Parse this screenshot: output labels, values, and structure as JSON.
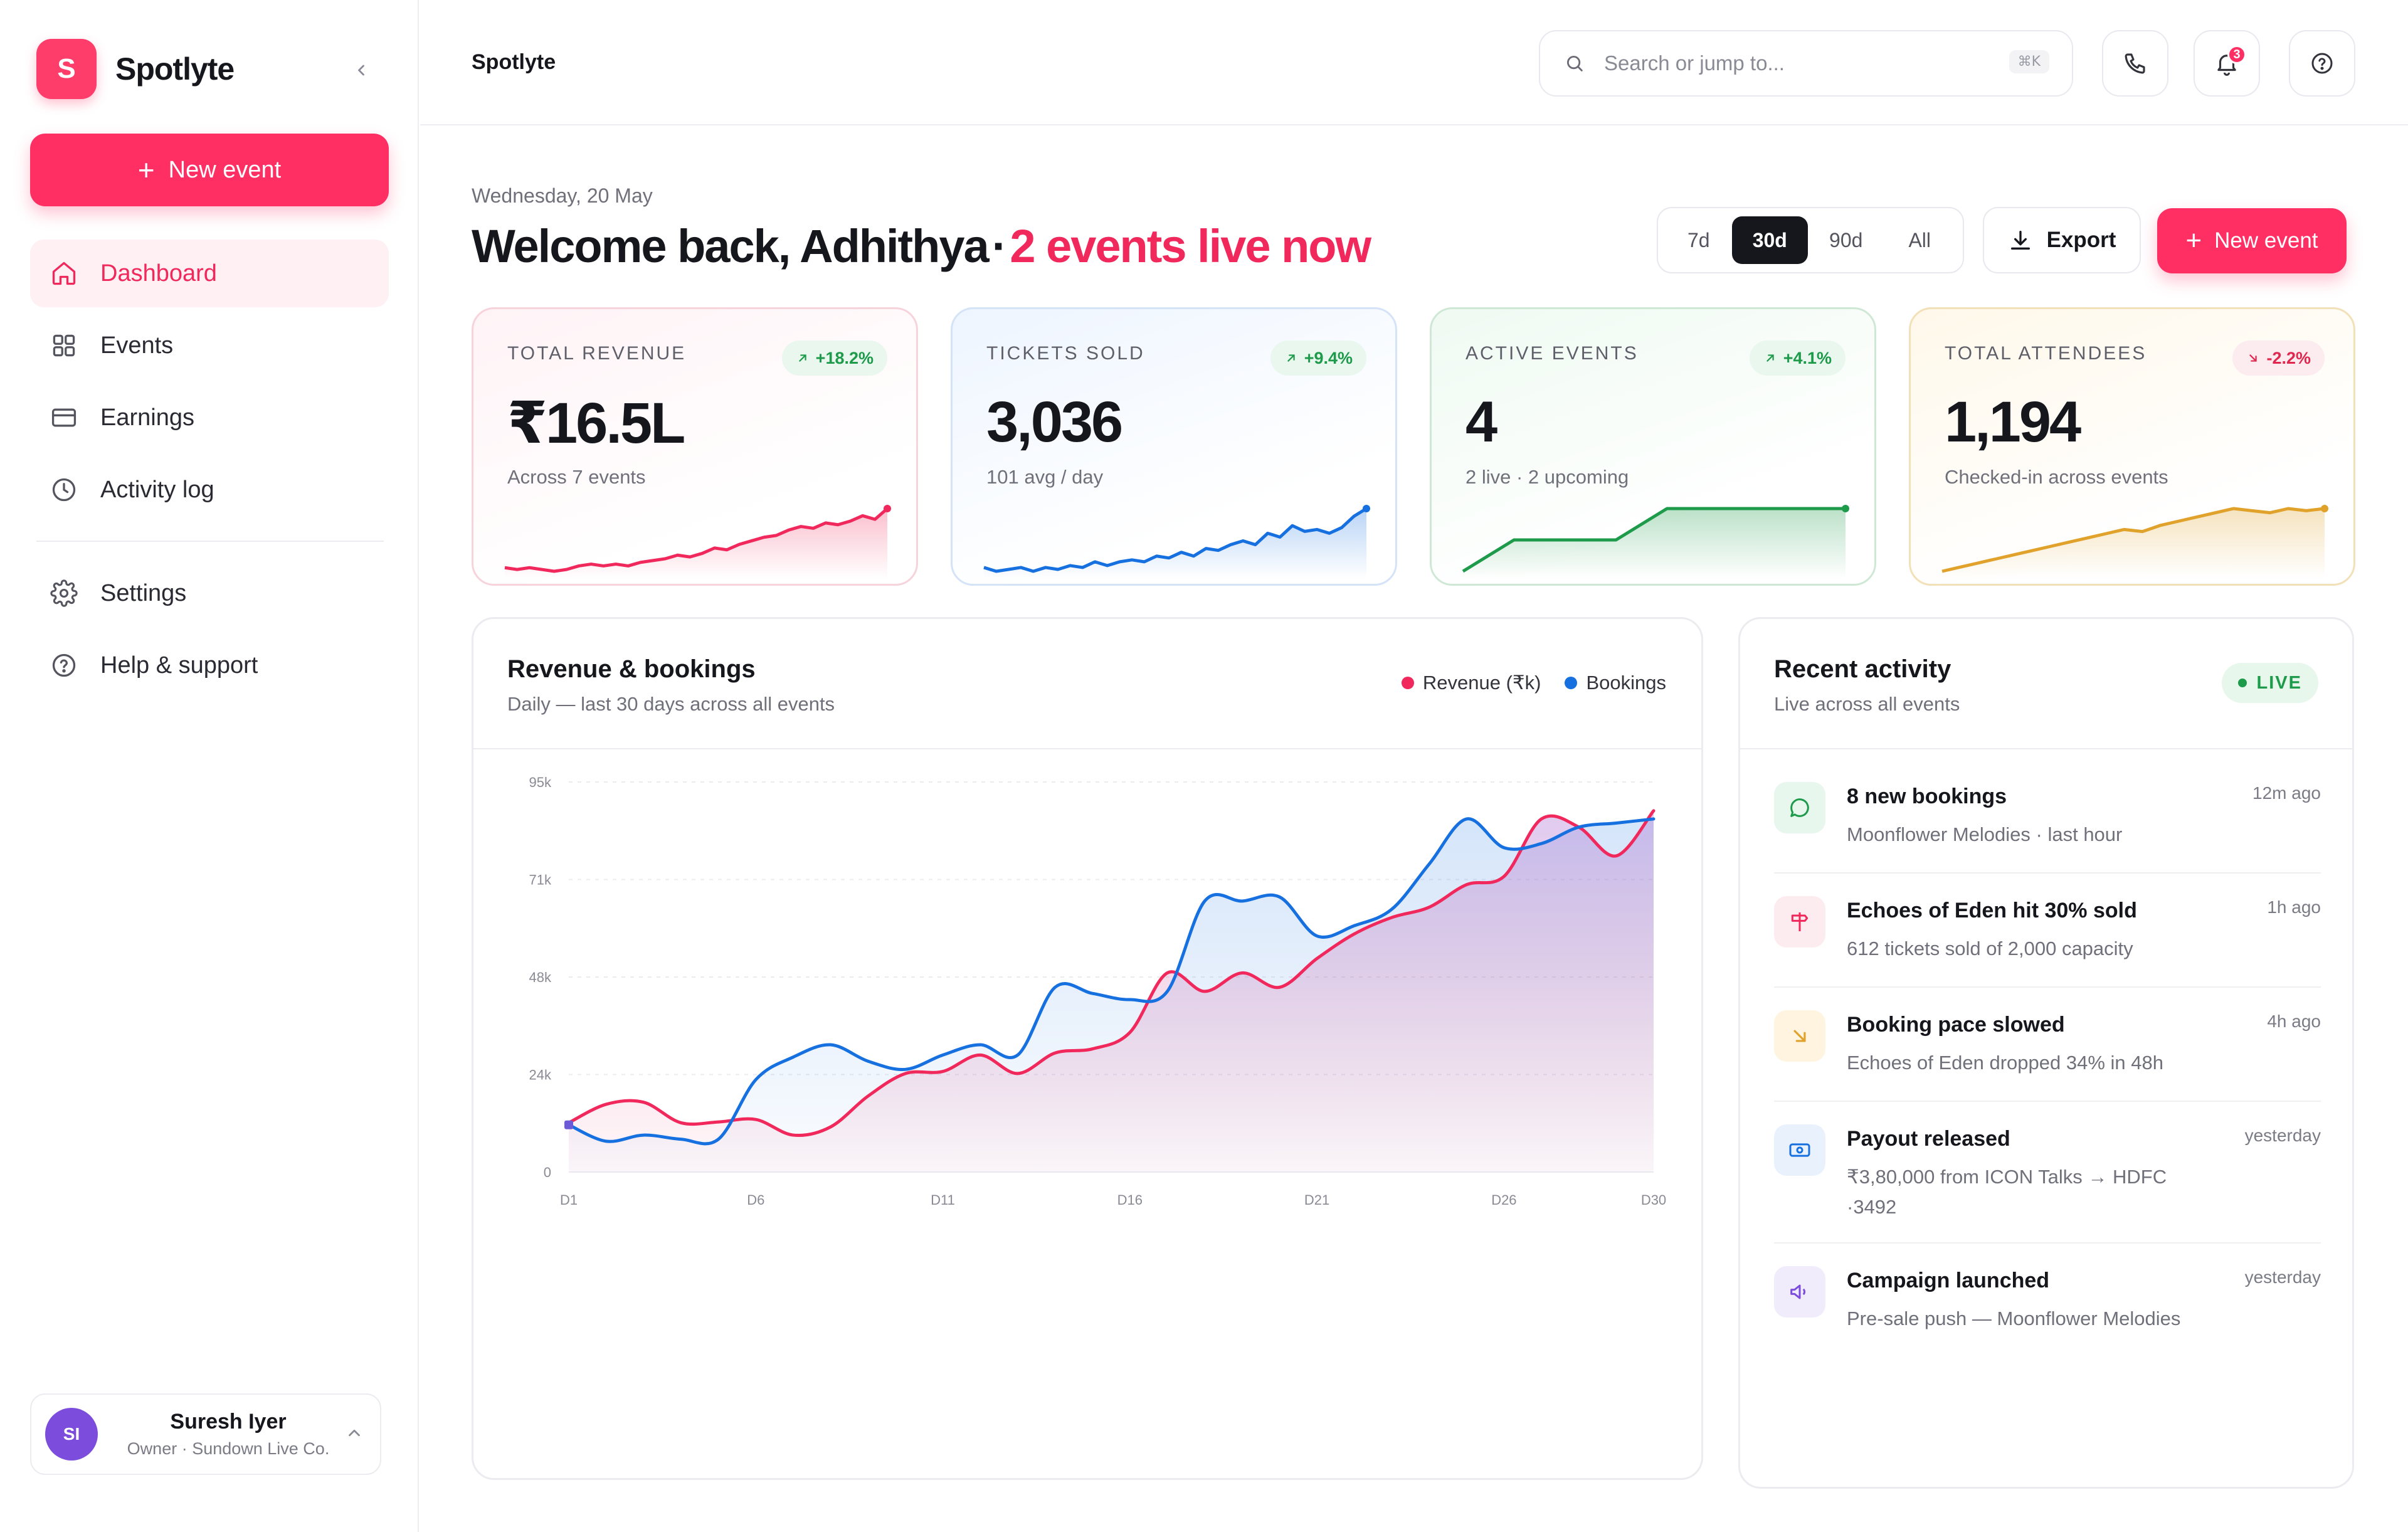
{
  "app": {
    "brand_initial": "S",
    "brand_name": "Spotlyte",
    "new_event_label": "New event"
  },
  "sidebar": {
    "items": [
      {
        "label": "Dashboard",
        "icon": "home-icon",
        "active": true
      },
      {
        "label": "Events",
        "icon": "grid-icon",
        "active": false
      },
      {
        "label": "Earnings",
        "icon": "card-icon",
        "active": false
      },
      {
        "label": "Activity log",
        "icon": "clock-icon",
        "active": false
      },
      {
        "label": "Settings",
        "icon": "gear-icon",
        "active": false
      },
      {
        "label": "Help & support",
        "icon": "help-icon",
        "active": false
      }
    ],
    "user": {
      "initials": "SI",
      "name": "Suresh Iyer",
      "role": "Owner · Sundown Live Co."
    }
  },
  "topbar": {
    "title": "Spotlyte",
    "search_placeholder": "Search or jump to...",
    "search_shortcut": "⌘K",
    "notification_count": "3"
  },
  "header": {
    "date": "Wednesday, 20 May",
    "welcome": "Welcome back, Adhithya",
    "separator": "·",
    "live_text": "2 events live now",
    "ranges": [
      "7d",
      "30d",
      "90d",
      "All"
    ],
    "active_range": "30d",
    "export_label": "Export",
    "new_event_label": "New event"
  },
  "kpis": [
    {
      "label": "TOTAL REVENUE",
      "delta": "+18.2%",
      "direction": "up",
      "value": "₹16.5L",
      "sub": "Across 7 events",
      "color": "#f0285b",
      "spark": [
        5,
        4,
        5,
        4,
        3,
        4,
        6,
        7,
        6,
        7,
        6,
        8,
        9,
        10,
        12,
        11,
        13,
        16,
        15,
        18,
        20,
        22,
        23,
        26,
        28,
        27,
        30,
        29,
        31,
        34,
        32,
        38
      ]
    },
    {
      "label": "TICKETS SOLD",
      "delta": "+9.4%",
      "direction": "up",
      "value": "3,036",
      "sub": "101 avg / day",
      "color": "#1670e0",
      "spark": [
        6,
        4,
        5,
        6,
        4,
        6,
        5,
        7,
        6,
        9,
        7,
        9,
        10,
        9,
        12,
        11,
        14,
        12,
        16,
        15,
        18,
        20,
        18,
        24,
        22,
        28,
        25,
        26,
        24,
        27,
        33,
        37
      ]
    },
    {
      "label": "ACTIVE EVENTS",
      "delta": "+4.1%",
      "direction": "up",
      "value": "4",
      "sub": "2 live · 2 upcoming",
      "color": "#1e9b4a",
      "spark": [
        0,
        10,
        20,
        20,
        20,
        20,
        20,
        30,
        40,
        40,
        40,
        40,
        40,
        40,
        40,
        40
      ]
    },
    {
      "label": "TOTAL ATTENDEES",
      "delta": "-2.2%",
      "direction": "down",
      "value": "1,194",
      "sub": "Checked-in across events",
      "color": "#e0a22a",
      "spark": [
        4,
        6,
        8,
        10,
        12,
        14,
        16,
        18,
        20,
        22,
        24,
        23,
        26,
        28,
        30,
        32,
        34,
        33,
        32,
        34,
        33,
        34
      ]
    }
  ],
  "revenue_panel": {
    "title": "Revenue & bookings",
    "subtitle": "Daily — last 30 days across all events",
    "legend": [
      {
        "name": "Revenue (₹k)",
        "color": "#f0285b"
      },
      {
        "name": "Bookings",
        "color": "#1670e0"
      }
    ]
  },
  "chart_data": {
    "type": "line",
    "title": "Revenue & bookings",
    "xlabel": "",
    "ylabel": "",
    "ylim": [
      0,
      95000
    ],
    "y_ticks": [
      "0",
      "24k",
      "48k",
      "71k",
      "95k"
    ],
    "x_ticks": [
      "D1",
      "D6",
      "D11",
      "D16",
      "D21",
      "D26",
      "D30"
    ],
    "x": [
      "D1",
      "D2",
      "D3",
      "D4",
      "D5",
      "D6",
      "D7",
      "D8",
      "D9",
      "D10",
      "D11",
      "D12",
      "D13",
      "D14",
      "D15",
      "D16",
      "D17",
      "D18",
      "D19",
      "D20",
      "D21",
      "D22",
      "D23",
      "D24",
      "D25",
      "D26",
      "D27",
      "D28",
      "D29",
      "D30"
    ],
    "grid": true,
    "series": [
      {
        "name": "Revenue (₹k)",
        "color": "#f0285b",
        "values": [
          12000,
          16500,
          17000,
          12000,
          12200,
          12800,
          9000,
          11000,
          18500,
          24000,
          24500,
          28500,
          24000,
          29000,
          30000,
          34000,
          48500,
          44000,
          48500,
          45000,
          52000,
          58000,
          62000,
          64500,
          70000,
          72000,
          86000,
          84000,
          77000,
          88000
        ]
      },
      {
        "name": "Bookings",
        "color": "#1670e0",
        "values": [
          11500,
          7500,
          9000,
          8000,
          8000,
          22500,
          28000,
          31000,
          27000,
          25000,
          28500,
          31000,
          28500,
          45000,
          43500,
          42000,
          44000,
          66000,
          66000,
          67000,
          57500,
          60000,
          64000,
          75000,
          86000,
          79000,
          80000,
          84000,
          85000,
          86000
        ]
      }
    ]
  },
  "activity": {
    "title": "Recent activity",
    "subtitle": "Live across all events",
    "live_label": "LIVE",
    "items": [
      {
        "title": "8 new bookings",
        "desc": "Moonflower Melodies · last hour",
        "time": "12m ago",
        "icon": "chat-icon",
        "tone": "green"
      },
      {
        "title": "Echoes of Eden hit 30% sold",
        "desc": "612 tickets sold of 2,000 capacity",
        "time": "1h ago",
        "icon": "signpost-icon",
        "tone": "pink"
      },
      {
        "title": "Booking pace slowed",
        "desc": "Echoes of Eden dropped 34% in 48h",
        "time": "4h ago",
        "icon": "arrow-down-right-icon",
        "tone": "amber"
      },
      {
        "title": "Payout released",
        "desc": "₹3,80,000 from ICON Talks → HDFC ·3492",
        "time": "yesterday",
        "icon": "cash-icon",
        "tone": "blue"
      },
      {
        "title": "Campaign launched",
        "desc": "Pre-sale push — Moonflower Melodies",
        "time": "yesterday",
        "icon": "megaphone-icon",
        "tone": "purple"
      }
    ]
  }
}
